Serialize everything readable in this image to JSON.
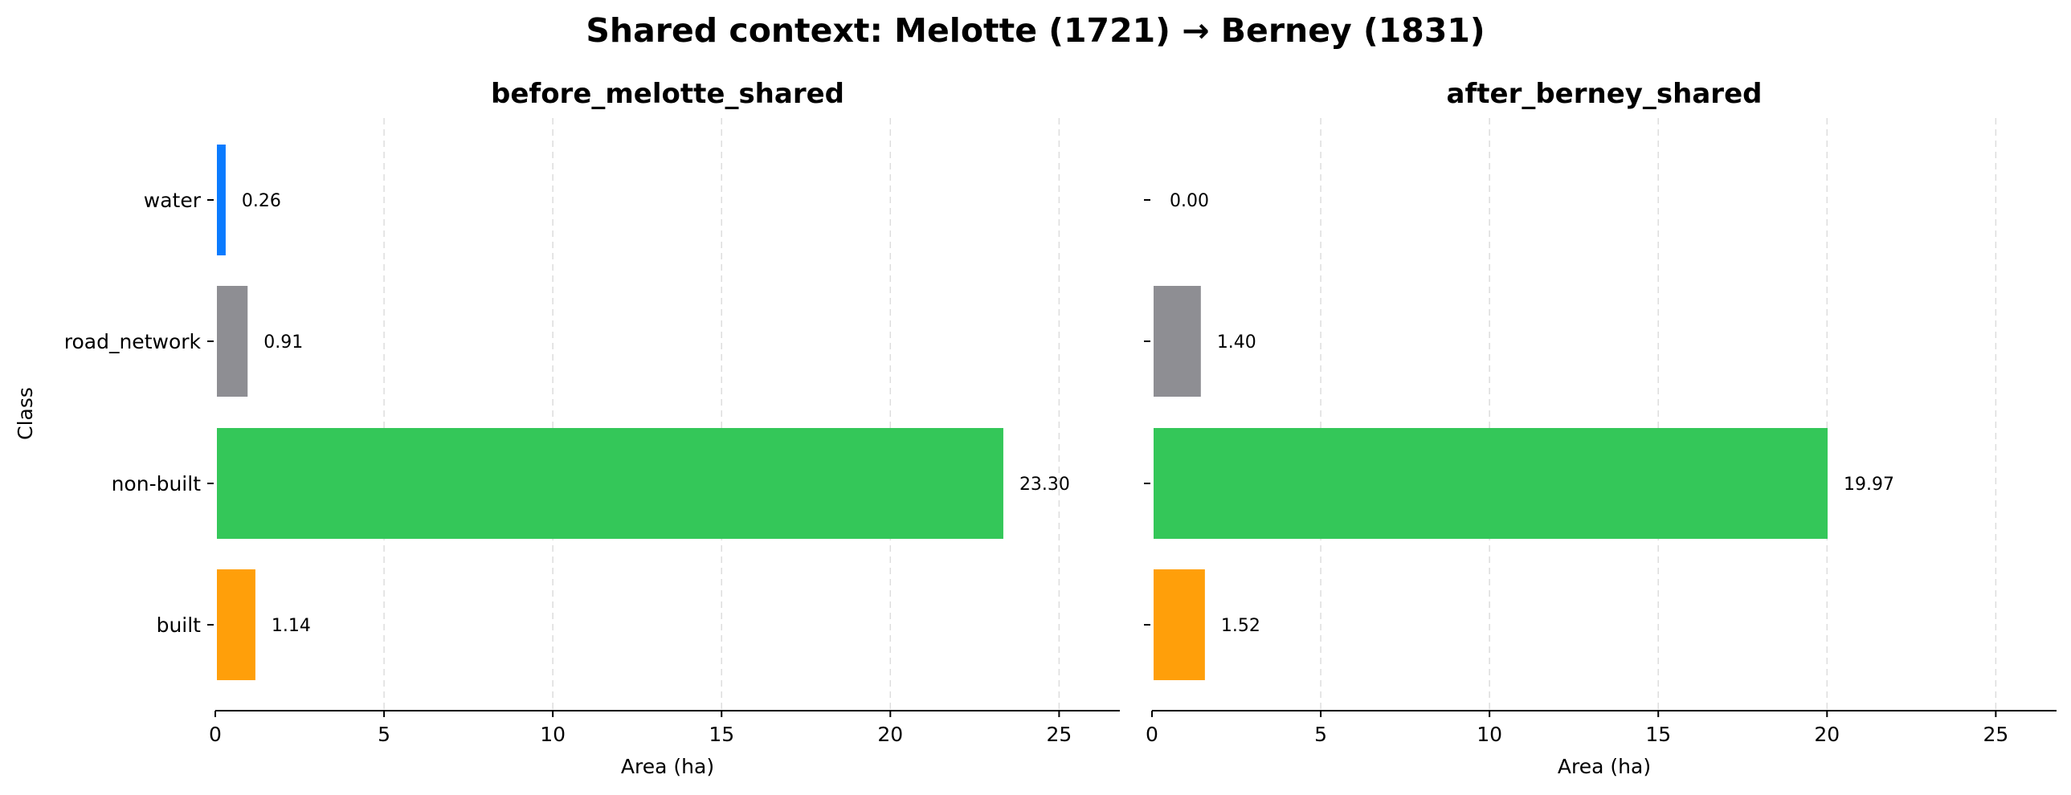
{
  "title": "Shared context: Melotte (1721) → Berney (1831)",
  "chart_data": {
    "type": "bar",
    "orientation": "horizontal",
    "title": "Shared context: Melotte (1721) → Berney (1831)",
    "ylabel": "Class",
    "xlabel": "Area (ha)",
    "categories": [
      "water",
      "road_network",
      "non-built",
      "built"
    ],
    "colors": {
      "water": "#0a7bff",
      "road_network": "#8e8e93",
      "non-built": "#34c759",
      "built": "#ff9f0a"
    },
    "xlim": [
      0,
      26.8
    ],
    "xticks": [
      "0",
      "5",
      "10",
      "15",
      "20",
      "25"
    ],
    "grid": "x-dashed",
    "panels": [
      {
        "title": "before_melotte_shared",
        "values": [
          0.26,
          0.91,
          23.3,
          1.14
        ],
        "labels": [
          "0.26",
          "0.91",
          "23.30",
          "1.14"
        ]
      },
      {
        "title": "after_berney_shared",
        "values": [
          0.0,
          1.4,
          19.97,
          1.52
        ],
        "labels": [
          "0.00",
          "1.40",
          "19.97",
          "1.52"
        ]
      }
    ]
  }
}
